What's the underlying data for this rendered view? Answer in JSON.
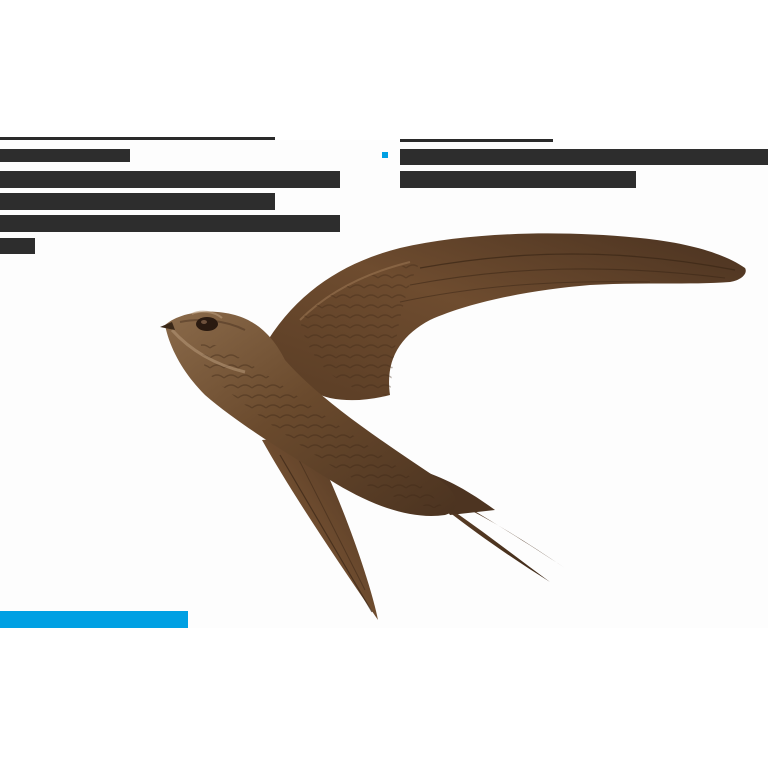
{
  "figure": {
    "subject_icon": "swift-bird-illustration",
    "colors": {
      "accent": "#00a0e3",
      "redaction": "#2d2d2d",
      "bird_dark": "#3e2a1a",
      "bird_mid": "#6b4a2e",
      "bird_light": "#8e6a46"
    }
  }
}
